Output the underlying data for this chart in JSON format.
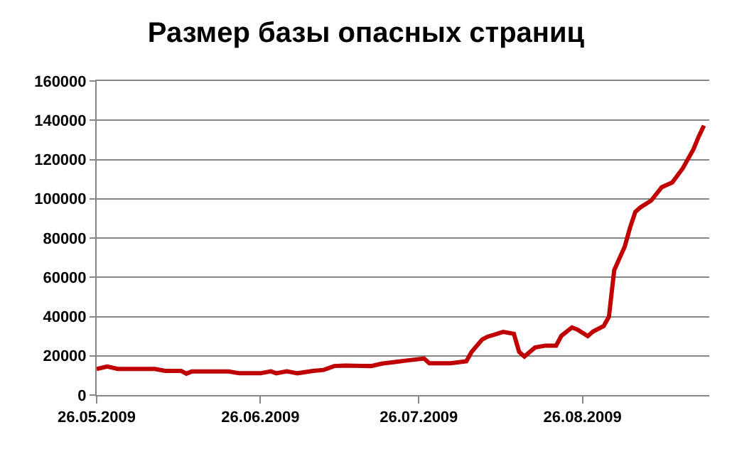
{
  "chart_data": {
    "type": "line",
    "title": "Размер базы опасных страниц",
    "x": [
      "2009-05-26",
      "2009-05-28",
      "2009-05-30",
      "2009-06-06",
      "2009-06-08",
      "2009-06-11",
      "2009-06-12",
      "2009-06-13",
      "2009-06-20",
      "2009-06-22",
      "2009-06-26",
      "2009-06-28",
      "2009-06-29",
      "2009-07-01",
      "2009-07-03",
      "2009-07-06",
      "2009-07-08",
      "2009-07-10",
      "2009-07-12",
      "2009-07-17",
      "2009-07-19",
      "2009-07-22",
      "2009-07-24",
      "2009-07-27",
      "2009-07-28",
      "2009-08-01",
      "2009-08-04",
      "2009-08-05",
      "2009-08-07",
      "2009-08-08",
      "2009-08-11",
      "2009-08-13",
      "2009-08-14",
      "2009-08-15",
      "2009-08-17",
      "2009-08-19",
      "2009-08-21",
      "2009-08-22",
      "2009-08-24",
      "2009-08-25",
      "2009-08-27",
      "2009-08-28",
      "2009-08-30",
      "2009-08-31",
      "2009-09-01",
      "2009-09-03",
      "2009-09-04",
      "2009-09-05",
      "2009-09-06",
      "2009-09-08",
      "2009-09-10",
      "2009-09-12",
      "2009-09-14",
      "2009-09-16",
      "2009-09-17",
      "2009-09-18"
    ],
    "series": [
      {
        "color": "#c00000",
        "values": [
          13300,
          14500,
          13300,
          13300,
          12300,
          12300,
          10900,
          12000,
          12000,
          11100,
          11100,
          12100,
          11100,
          12100,
          11100,
          12300,
          12800,
          14800,
          15000,
          14800,
          16000,
          17000,
          17700,
          18600,
          16200,
          16200,
          17200,
          22000,
          28300,
          29700,
          32200,
          31200,
          22000,
          19600,
          24200,
          25200,
          25200,
          30200,
          34400,
          33400,
          30000,
          32400,
          35100,
          39900,
          63600,
          75700,
          85300,
          93300,
          95700,
          99100,
          105900,
          108300,
          115600,
          125200,
          131700,
          137300
        ]
      }
    ],
    "xlim": [
      "2009-05-26",
      "2009-09-19"
    ],
    "xticks": [
      {
        "value": "2009-05-26",
        "label": "26.05.2009"
      },
      {
        "value": "2009-06-26",
        "label": "26.06.2009"
      },
      {
        "value": "2009-07-26",
        "label": "26.07.2009"
      },
      {
        "value": "2009-08-26",
        "label": "26.08.2009"
      }
    ],
    "ylim": [
      0,
      160000
    ],
    "yticks": [
      0,
      20000,
      40000,
      60000,
      80000,
      100000,
      120000,
      140000,
      160000
    ],
    "grid": "y",
    "marker": "none",
    "line_style": "solid"
  }
}
